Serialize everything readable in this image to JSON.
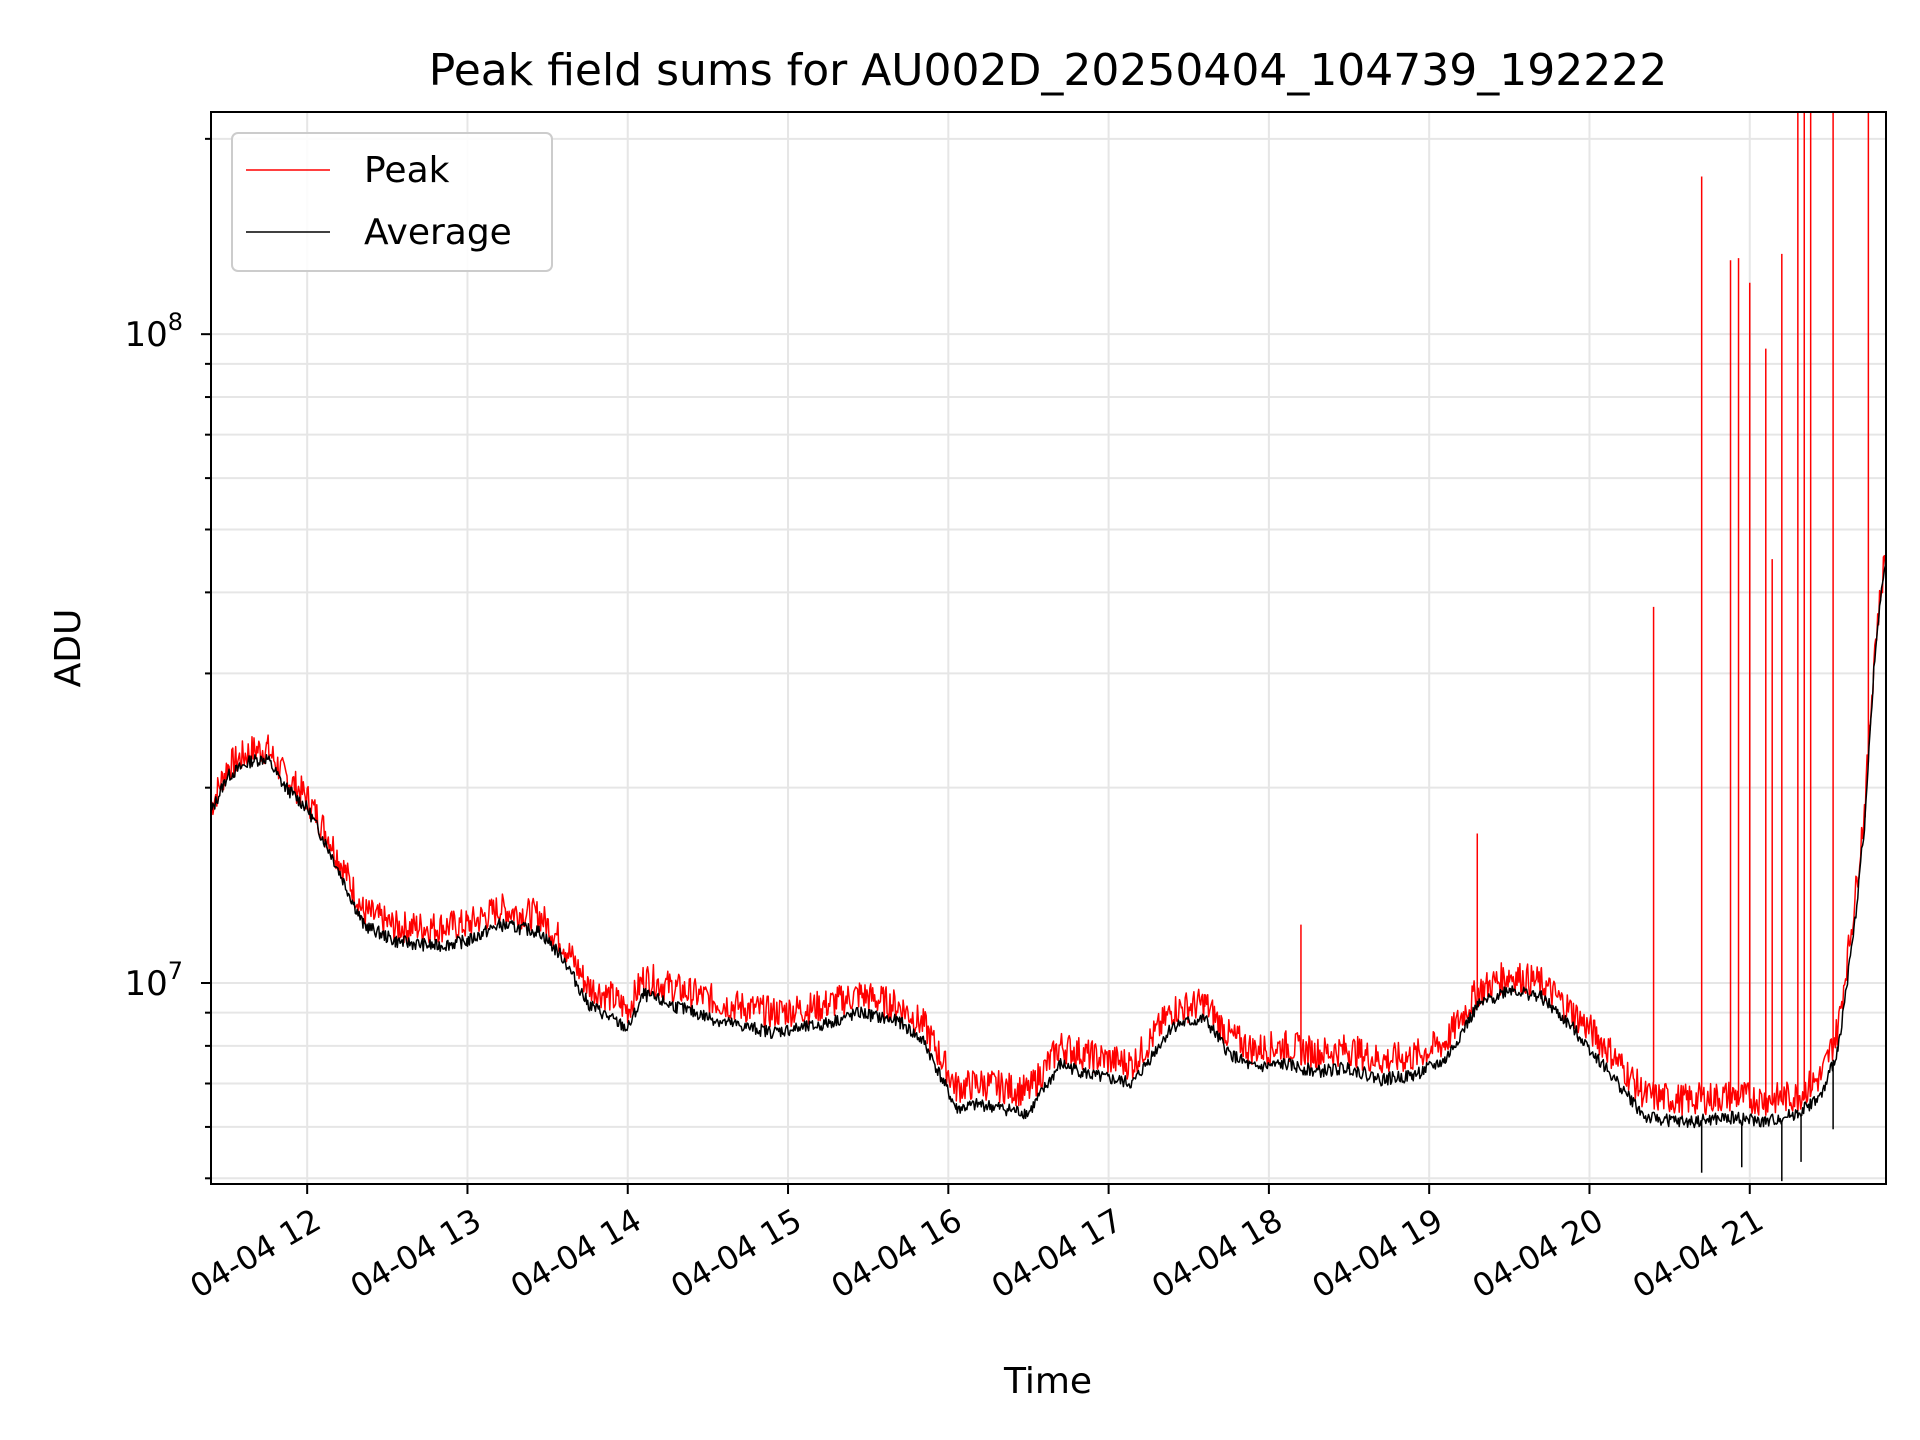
{
  "chart_data": {
    "type": "line",
    "title": "Peak field sums for AU002D_20250404_104739_192222",
    "xlabel": "Time",
    "ylabel": "ADU",
    "yscale": "log",
    "ylim": [
      4900000,
      220000000
    ],
    "xlim_hours": [
      11.4,
      21.85
    ],
    "x_ticks": [
      {
        "hour": 12,
        "label": "04-04 12"
      },
      {
        "hour": 13,
        "label": "04-04 13"
      },
      {
        "hour": 14,
        "label": "04-04 14"
      },
      {
        "hour": 15,
        "label": "04-04 15"
      },
      {
        "hour": 16,
        "label": "04-04 16"
      },
      {
        "hour": 17,
        "label": "04-04 17"
      },
      {
        "hour": 18,
        "label": "04-04 18"
      },
      {
        "hour": 19,
        "label": "04-04 19"
      },
      {
        "hour": 20,
        "label": "04-04 20"
      },
      {
        "hour": 21,
        "label": "04-04 21"
      }
    ],
    "y_ticks": [
      {
        "value": 10000000,
        "base": "10",
        "exp": "7"
      },
      {
        "value": 100000000,
        "base": "10",
        "exp": "8"
      }
    ],
    "grid": true,
    "legend_position": "top-left",
    "series": [
      {
        "name": "Peak",
        "color": "#ff0000",
        "x_hours": [
          11.4,
          11.5,
          11.65,
          11.75,
          11.85,
          12.0,
          12.15,
          12.35,
          12.55,
          12.8,
          13.0,
          13.2,
          13.45,
          13.6,
          13.75,
          13.9,
          14.0,
          14.1,
          14.3,
          14.6,
          14.9,
          15.2,
          15.45,
          15.7,
          15.85,
          16.05,
          16.2,
          16.5,
          16.7,
          16.9,
          17.15,
          17.4,
          17.6,
          17.75,
          17.9,
          18.1,
          18.3,
          18.5,
          18.7,
          18.9,
          19.1,
          19.3,
          19.5,
          19.7,
          19.9,
          20.1,
          20.35,
          20.6,
          20.9,
          21.1,
          21.3,
          21.45,
          21.55,
          21.65,
          21.72,
          21.78,
          21.85
        ],
        "values": [
          18700000,
          21500000,
          22800000,
          23000000,
          21000000,
          19300000,
          16500000,
          12900000,
          12200000,
          12200000,
          12300000,
          13000000,
          12700000,
          11500000,
          9900000,
          9500000,
          9100000,
          10200000,
          9800000,
          9300000,
          9000000,
          9200000,
          9600000,
          9200000,
          8600000,
          6900000,
          7000000,
          6800000,
          8000000,
          7700000,
          7500000,
          9100000,
          9300000,
          8300000,
          7900000,
          8000000,
          7800000,
          7900000,
          7600000,
          7700000,
          8100000,
          9700000,
          10300000,
          10000000,
          9000000,
          8000000,
          6700000,
          6600000,
          6700000,
          6600000,
          6700000,
          7200000,
          8500000,
          13000000,
          19000000,
          33000000,
          47000000
        ]
      },
      {
        "name": "Average",
        "color": "#000000",
        "x_hours": [
          11.4,
          11.5,
          11.65,
          11.75,
          11.85,
          12.0,
          12.15,
          12.35,
          12.55,
          12.8,
          13.0,
          13.2,
          13.45,
          13.6,
          13.75,
          13.9,
          14.0,
          14.1,
          14.3,
          14.6,
          14.9,
          15.2,
          15.45,
          15.7,
          15.85,
          16.05,
          16.2,
          16.5,
          16.7,
          16.9,
          17.15,
          17.4,
          17.6,
          17.75,
          17.9,
          18.1,
          18.3,
          18.5,
          18.7,
          18.9,
          19.1,
          19.3,
          19.5,
          19.7,
          19.9,
          20.1,
          20.35,
          20.6,
          20.9,
          21.1,
          21.3,
          21.45,
          21.55,
          21.65,
          21.72,
          21.78,
          21.85
        ],
        "values": [
          18300000,
          20800000,
          22000000,
          22200000,
          20200000,
          18600000,
          15800000,
          12300000,
          11600000,
          11400000,
          11600000,
          12300000,
          12000000,
          10900000,
          9300000,
          8800000,
          8500000,
          9600000,
          9200000,
          8700000,
          8400000,
          8600000,
          9000000,
          8700000,
          8100000,
          6400000,
          6500000,
          6300000,
          7500000,
          7200000,
          7000000,
          8600000,
          8800000,
          7800000,
          7400000,
          7500000,
          7300000,
          7400000,
          7100000,
          7200000,
          7600000,
          9200000,
          9800000,
          9500000,
          8500000,
          7400000,
          6200000,
          6100000,
          6200000,
          6100000,
          6300000,
          6700000,
          7900000,
          12000000,
          18000000,
          32000000,
          46000000
        ]
      }
    ],
    "peak_spikes": [
      {
        "x_hour": 18.2,
        "value": 12300000
      },
      {
        "x_hour": 19.3,
        "value": 17000000
      },
      {
        "x_hour": 20.4,
        "value": 38000000
      },
      {
        "x_hour": 20.7,
        "value": 175000000
      },
      {
        "x_hour": 20.88,
        "value": 130000000
      },
      {
        "x_hour": 20.93,
        "value": 131000000
      },
      {
        "x_hour": 21.0,
        "value": 120000000
      },
      {
        "x_hour": 21.1,
        "value": 95000000
      },
      {
        "x_hour": 21.14,
        "value": 45000000
      },
      {
        "x_hour": 21.2,
        "value": 133000000
      },
      {
        "x_hour": 21.3,
        "value": 220000000
      },
      {
        "x_hour": 21.34,
        "value": 220000000
      },
      {
        "x_hour": 21.38,
        "value": 220000000
      },
      {
        "x_hour": 21.52,
        "value": 220000000
      },
      {
        "x_hour": 21.74,
        "value": 220000000
      }
    ],
    "average_dips": [
      {
        "x_hour": 20.7,
        "value": 5100000
      },
      {
        "x_hour": 20.95,
        "value": 5200000
      },
      {
        "x_hour": 21.2,
        "value": 4950000
      },
      {
        "x_hour": 21.32,
        "value": 5300000
      },
      {
        "x_hour": 21.52,
        "value": 5950000
      }
    ]
  }
}
